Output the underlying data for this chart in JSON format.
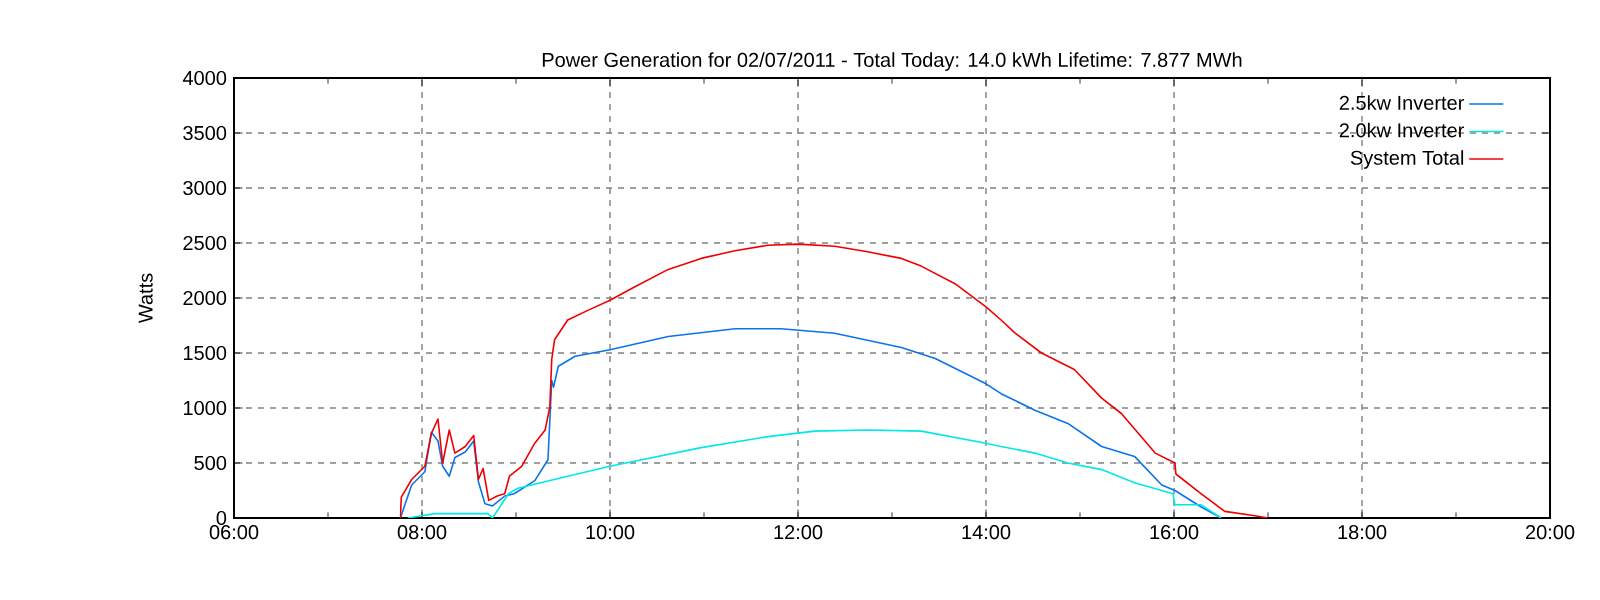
{
  "chart_data": {
    "type": "line",
    "title": "Power Generation for 02/07/2011 - Total Today: 14.0 kWh   Lifetime: 7.877 MWh",
    "ylabel": "Watts",
    "xlim": [
      6,
      20
    ],
    "xticks": [
      {
        "value": 6,
        "label": "06:00"
      },
      {
        "value": 8,
        "label": "08:00"
      },
      {
        "value": 10,
        "label": "10:00"
      },
      {
        "value": 12,
        "label": "12:00"
      },
      {
        "value": 14,
        "label": "14:00"
      },
      {
        "value": 16,
        "label": "16:00"
      },
      {
        "value": 18,
        "label": "18:00"
      },
      {
        "value": 20,
        "label": "20:00"
      }
    ],
    "ylim": [
      0,
      4000
    ],
    "yticks": [
      0,
      500,
      1000,
      1500,
      2000,
      2500,
      3000,
      3500,
      4000
    ],
    "grid": true,
    "legend": "top right",
    "line_style": "solid",
    "marker": "none",
    "series": [
      {
        "name": "2.5kw Inverter",
        "color": "#0a74ea",
        "x": [
          7.77,
          7.89,
          8.03,
          8.1,
          8.17,
          8.22,
          8.29,
          8.35,
          8.46,
          8.55,
          8.6,
          8.67,
          8.75,
          8.88,
          8.98,
          9.2,
          9.34,
          9.38,
          9.4,
          9.45,
          9.63,
          10,
          10.62,
          11.33,
          11.82,
          12.39,
          13.1,
          13.46,
          14,
          14.16,
          14.52,
          14.87,
          15.23,
          15.58,
          15.87,
          16.01,
          16.29,
          16.5
        ],
        "values": [
          0,
          300,
          420,
          780,
          700,
          470,
          380,
          550,
          600,
          700,
          330,
          130,
          110,
          200,
          220,
          340,
          530,
          1250,
          1190,
          1380,
          1470,
          1530,
          1650,
          1720,
          1720,
          1680,
          1550,
          1450,
          1220,
          1130,
          980,
          860,
          650,
          560,
          300,
          250,
          100,
          0
        ]
      },
      {
        "name": "2.0kw Inverter",
        "color": "#00e8e8",
        "x": [
          7.85,
          8.14,
          8.7,
          8.75,
          8.92,
          9.02,
          9.55,
          10,
          10.97,
          11.68,
          12.18,
          12.74,
          13.31,
          14,
          14.16,
          14.52,
          14.87,
          15.23,
          15.58,
          15.99,
          16.01,
          16.29,
          16.5
        ],
        "values": [
          0,
          40,
          40,
          0,
          220,
          270,
          380,
          470,
          640,
          740,
          790,
          800,
          790,
          680,
          650,
          590,
          500,
          440,
          320,
          220,
          120,
          120,
          0
        ]
      },
      {
        "name": "System Total",
        "color": "#f00000",
        "x": [
          7.77,
          7.78,
          7.89,
          8.03,
          8.1,
          8.17,
          8.22,
          8.29,
          8.35,
          8.46,
          8.55,
          8.6,
          8.65,
          8.71,
          8.8,
          8.88,
          8.93,
          9.06,
          9.2,
          9.31,
          9.36,
          9.38,
          9.41,
          9.55,
          9.77,
          10,
          10.26,
          10.62,
          10.97,
          11.33,
          11.68,
          12,
          12.39,
          12.74,
          13.1,
          13.31,
          13.67,
          14,
          14.16,
          14.31,
          14.59,
          14.94,
          15.23,
          15.44,
          15.8,
          16.01,
          16.02,
          16.29,
          16.54,
          16.86,
          17
        ],
        "values": [
          0,
          190,
          350,
          470,
          770,
          900,
          500,
          800,
          590,
          650,
          750,
          350,
          450,
          160,
          200,
          220,
          380,
          470,
          680,
          800,
          1010,
          1440,
          1620,
          1800,
          1890,
          1980,
          2100,
          2260,
          2360,
          2430,
          2480,
          2490,
          2470,
          2420,
          2360,
          2290,
          2130,
          1920,
          1800,
          1680,
          1500,
          1350,
          1090,
          950,
          590,
          500,
          400,
          220,
          60,
          20,
          0
        ]
      }
    ]
  }
}
